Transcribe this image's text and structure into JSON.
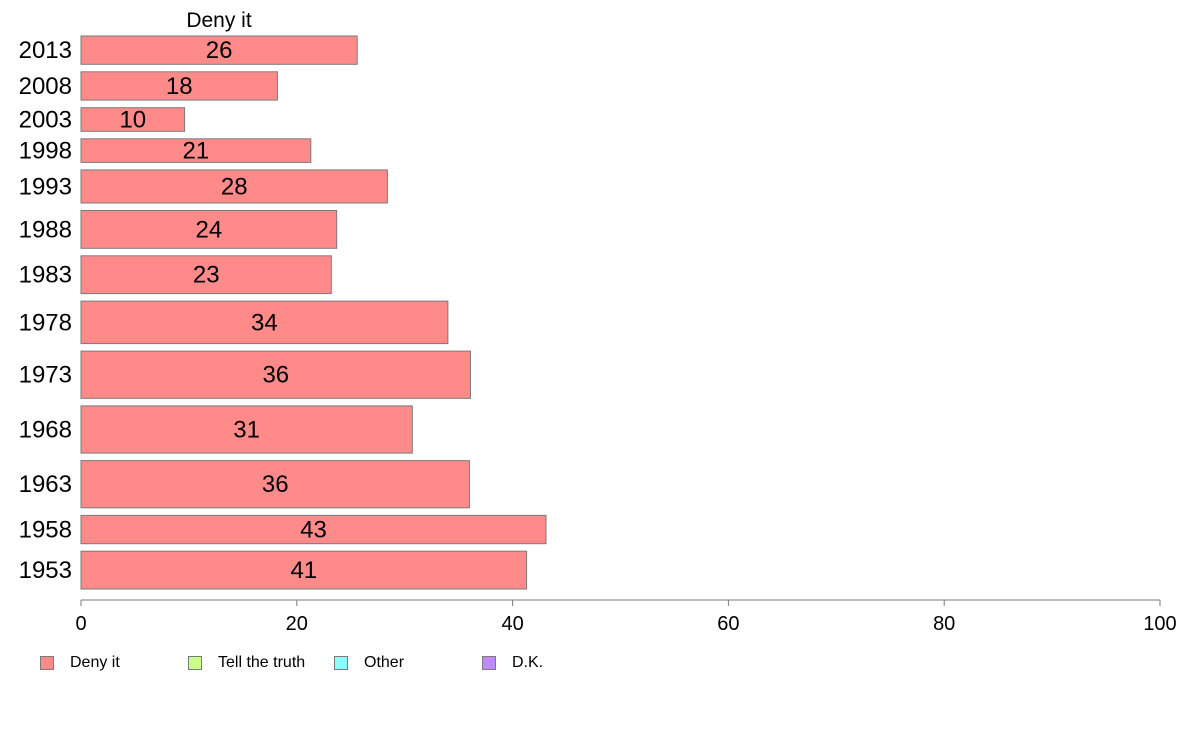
{
  "chart_data": {
    "type": "bar",
    "orientation": "horizontal",
    "title": "Deny it",
    "categories": [
      "2013",
      "2008",
      "2003",
      "1998",
      "1993",
      "1988",
      "1983",
      "1978",
      "1973",
      "1968",
      "1963",
      "1958",
      "1953"
    ],
    "series": [
      {
        "name": "Deny it",
        "values": [
          26,
          18,
          10,
          21,
          28,
          24,
          23,
          34,
          36,
          31,
          36,
          43,
          41
        ]
      }
    ],
    "bar_weights": [
      6,
      6,
      5,
      5,
      7,
      8,
      8,
      9,
      10,
      10,
      10,
      6,
      8
    ],
    "xlim": [
      0,
      100
    ],
    "xticks": [
      0,
      20,
      40,
      60,
      80,
      100
    ],
    "precise_values": [
      25.6,
      18.2,
      9.6,
      21.3,
      28.4,
      23.7,
      23.2,
      34.0,
      36.1,
      30.7,
      36.0,
      43.1,
      41.3
    ],
    "grid": false,
    "legend_position": "bottom-left",
    "legend": [
      {
        "label": "Deny it",
        "color": "#ff8a8a"
      },
      {
        "label": "Tell the truth",
        "color": "#ccff8a"
      },
      {
        "label": "Other",
        "color": "#8affff"
      },
      {
        "label": "D.K.",
        "color": "#c08aff"
      }
    ],
    "colors": {
      "bar": "#ff8a8a",
      "bar_border": "#7a7a7a",
      "axis": "#7a7a7a",
      "text": "#000000"
    }
  }
}
